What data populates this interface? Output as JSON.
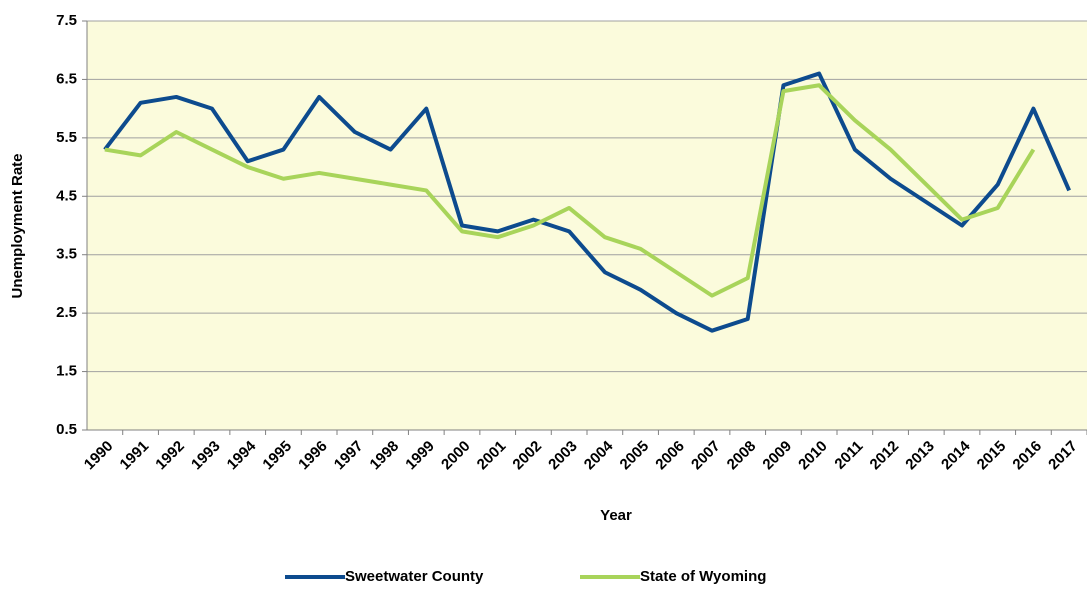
{
  "chart_data": {
    "type": "line",
    "x_label": "Year",
    "y_label": "Unemployment Rate",
    "categories": [
      "1990",
      "1991",
      "1992",
      "1993",
      "1994",
      "1995",
      "1996",
      "1997",
      "1998",
      "1999",
      "2000",
      "2001",
      "2002",
      "2003",
      "2004",
      "2005",
      "2006",
      "2007",
      "2008",
      "2009",
      "2010",
      "2011",
      "2012",
      "2013",
      "2014",
      "2015",
      "2016",
      "2017"
    ],
    "series": [
      {
        "name": "Sweetwater County",
        "color": "#0d4b8e",
        "values": [
          5.3,
          6.1,
          6.2,
          6.0,
          5.1,
          5.3,
          6.2,
          5.6,
          5.3,
          6.0,
          4.0,
          3.9,
          4.1,
          3.9,
          3.2,
          2.9,
          2.5,
          2.2,
          2.4,
          6.4,
          6.6,
          5.3,
          4.8,
          4.4,
          4.0,
          4.7,
          6.0,
          4.6
        ]
      },
      {
        "name": "State of Wyoming",
        "color": "#a8d45a",
        "values": [
          5.3,
          5.2,
          5.6,
          5.3,
          5.0,
          4.8,
          4.9,
          4.8,
          4.7,
          4.6,
          3.9,
          3.8,
          4.0,
          4.3,
          3.8,
          3.6,
          3.2,
          2.8,
          3.1,
          6.3,
          6.4,
          5.8,
          5.3,
          4.7,
          4.1,
          4.3,
          5.3,
          null
        ]
      }
    ],
    "ylim": [
      0.5,
      7.5
    ],
    "yticks": [
      0.5,
      1.5,
      2.5,
      3.5,
      4.5,
      5.5,
      6.5,
      7.5
    ],
    "grid": true,
    "plot_background": "#fbfbdc",
    "legend": "bottom"
  }
}
